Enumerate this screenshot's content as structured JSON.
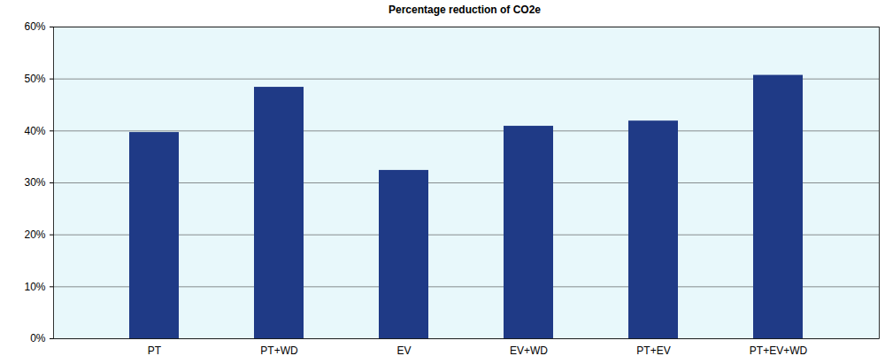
{
  "chart_data": {
    "type": "bar",
    "title": "Percentage reduction of CO2e",
    "categories": [
      "PT",
      "PT+WD",
      "EV",
      "EV+WD",
      "PT+EV",
      "PT+EV+WD"
    ],
    "values": [
      39.7,
      48.4,
      32.4,
      40.9,
      41.9,
      50.7
    ],
    "color": "#1f3a86",
    "ylim": [
      0,
      60
    ],
    "yticks": [
      {
        "value": 0,
        "label": "0%"
      },
      {
        "value": 10,
        "label": "10%"
      },
      {
        "value": 20,
        "label": "20%"
      },
      {
        "value": 30,
        "label": "30%"
      },
      {
        "value": 40,
        "label": "40%"
      },
      {
        "value": 50,
        "label": "50%"
      },
      {
        "value": 60,
        "label": "60%"
      }
    ],
    "grid": true
  }
}
